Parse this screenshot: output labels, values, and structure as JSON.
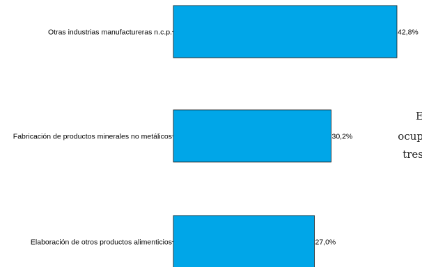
{
  "chart_data": {
    "type": "bar",
    "orientation": "horizontal",
    "categories": [
      "Otras industrias manufactureras n.c.p.",
      "Fabricación de productos minerales no metálicos",
      "Elaboración de otros productos alimenticios"
    ],
    "values": [
      42.8,
      30.2,
      27.0
    ],
    "value_labels": [
      "42,8%",
      "30,2%",
      "27,0%"
    ],
    "bar_color": "#00A6E8",
    "bar_stroke": "#1A1A1A",
    "xlim": [
      0,
      44
    ]
  },
  "side_text": {
    "line1": "E",
    "line2": "ocup",
    "line3": "tres"
  }
}
